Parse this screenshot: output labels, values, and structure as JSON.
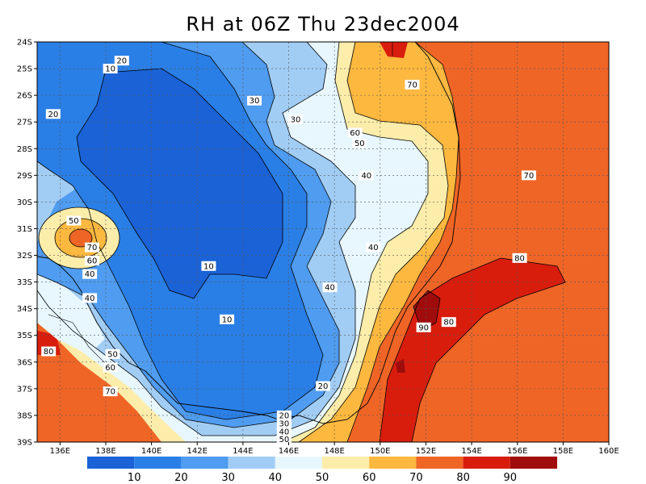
{
  "title": "RH at 06Z Thu 23dec2004",
  "chart_data": {
    "type": "filled-contour-map",
    "variable": "RH",
    "title": "RH at 06Z Thu 23dec2004",
    "lon_range": [
      135,
      160
    ],
    "lat_range": [
      -39,
      -24
    ],
    "x_ticks": [
      "136E",
      "138E",
      "140E",
      "142E",
      "144E",
      "146E",
      "148E",
      "150E",
      "152E",
      "154E",
      "156E",
      "158E",
      "160E"
    ],
    "y_ticks": [
      "24S",
      "25S",
      "26S",
      "27S",
      "28S",
      "29S",
      "30S",
      "31S",
      "32S",
      "33S",
      "34S",
      "35S",
      "36S",
      "37S",
      "38S",
      "39S"
    ],
    "contour_levels": [
      10,
      20,
      30,
      40,
      50,
      60,
      70,
      80,
      90
    ],
    "colorbar": {
      "labels": [
        "10",
        "20",
        "30",
        "40",
        "50",
        "60",
        "70",
        "80",
        "90"
      ],
      "colors": [
        "#1a62d6",
        "#2a7fe6",
        "#4f9cf0",
        "#a1cdf5",
        "#e7f7fd",
        "#fdedaa",
        "#fcb83f",
        "#ef6526",
        "#d81d0d",
        "#a00c0c"
      ]
    },
    "contour_labels": [
      {
        "text": "20",
        "lon": 138.7,
        "lat": -24.7
      },
      {
        "text": "10",
        "lon": 138.2,
        "lat": -25.0
      },
      {
        "text": "30",
        "lon": 144.5,
        "lat": -26.2
      },
      {
        "text": "30",
        "lon": 146.3,
        "lat": -26.9
      },
      {
        "text": "20",
        "lon": 135.7,
        "lat": -26.7
      },
      {
        "text": "60",
        "lon": 148.9,
        "lat": -27.4
      },
      {
        "text": "50",
        "lon": 149.1,
        "lat": -27.8
      },
      {
        "text": "70",
        "lon": 151.4,
        "lat": -25.6
      },
      {
        "text": "40",
        "lon": 149.4,
        "lat": -29.0
      },
      {
        "text": "70",
        "lon": 156.5,
        "lat": -29.0
      },
      {
        "text": "50",
        "lon": 136.6,
        "lat": -30.7
      },
      {
        "text": "70",
        "lon": 137.4,
        "lat": -31.7
      },
      {
        "text": "60",
        "lon": 137.4,
        "lat": -32.2
      },
      {
        "text": "40",
        "lon": 149.7,
        "lat": -31.7
      },
      {
        "text": "80",
        "lon": 156.1,
        "lat": -32.1
      },
      {
        "text": "10",
        "lon": 142.5,
        "lat": -32.4
      },
      {
        "text": "40",
        "lon": 137.3,
        "lat": -32.7
      },
      {
        "text": "40",
        "lon": 147.8,
        "lat": -33.2
      },
      {
        "text": "40",
        "lon": 137.3,
        "lat": -33.6
      },
      {
        "text": "10",
        "lon": 143.3,
        "lat": -34.4
      },
      {
        "text": "90",
        "lon": 151.9,
        "lat": -34.7
      },
      {
        "text": "80",
        "lon": 153.0,
        "lat": -34.5
      },
      {
        "text": "80",
        "lon": 135.5,
        "lat": -35.6
      },
      {
        "text": "50",
        "lon": 138.3,
        "lat": -35.7
      },
      {
        "text": "60",
        "lon": 138.2,
        "lat": -36.2
      },
      {
        "text": "20",
        "lon": 147.5,
        "lat": -36.9
      },
      {
        "text": "70",
        "lon": 138.2,
        "lat": -37.1
      },
      {
        "text": "20",
        "lon": 145.8,
        "lat": -38.0
      },
      {
        "text": "30",
        "lon": 145.8,
        "lat": -38.3
      },
      {
        "text": "40",
        "lon": 145.8,
        "lat": -38.6
      },
      {
        "text": "50",
        "lon": 145.8,
        "lat": -38.9
      }
    ]
  }
}
